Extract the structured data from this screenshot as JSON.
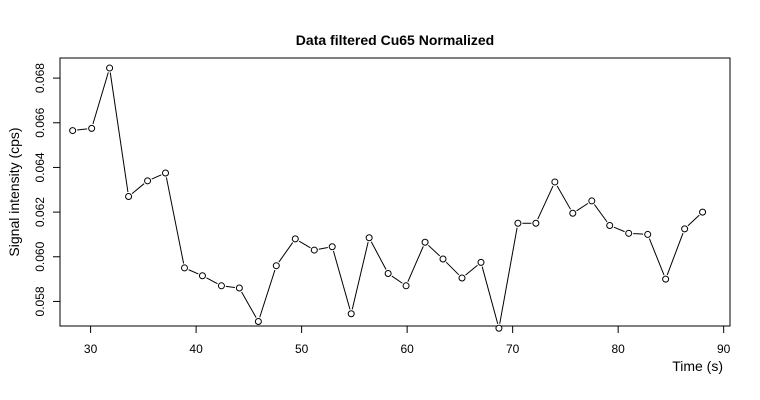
{
  "chart_data": {
    "type": "line",
    "title": "Data filtered Cu65 Normalized",
    "xlabel": "Time (s)",
    "ylabel": "Signal intensity (cps)",
    "xlim": [
      27.1,
      90.6
    ],
    "ylim": [
      0.0569,
      0.0689
    ],
    "x_ticks": [
      "30",
      "40",
      "50",
      "60",
      "70",
      "80",
      "90"
    ],
    "y_ticks": [
      "0.058",
      "0.060",
      "0.062",
      "0.064",
      "0.066",
      "0.068"
    ],
    "grid": false,
    "legend": "none",
    "series": [
      {
        "x": [
          28.3,
          30.1,
          31.8,
          33.6,
          35.4,
          37.1,
          38.9,
          40.6,
          42.4,
          44.1,
          45.9,
          47.6,
          49.4,
          51.2,
          52.9,
          54.7,
          56.4,
          58.2,
          59.9,
          61.7,
          63.4,
          65.2,
          67.0,
          68.7,
          70.5,
          72.2,
          74.0,
          75.7,
          77.5,
          79.2,
          81.0,
          82.8,
          84.5,
          86.3,
          88.0
        ],
        "y": [
          0.06565,
          0.06575,
          0.06845,
          0.0627,
          0.0634,
          0.06375,
          0.0595,
          0.05915,
          0.0587,
          0.0586,
          0.0571,
          0.0596,
          0.0608,
          0.0603,
          0.06045,
          0.05745,
          0.06085,
          0.05925,
          0.0587,
          0.06065,
          0.0599,
          0.05905,
          0.05975,
          0.0568,
          0.0615,
          0.0615,
          0.06335,
          0.06195,
          0.0625,
          0.0614,
          0.06105,
          0.061,
          0.059,
          0.06125,
          0.062
        ]
      }
    ]
  }
}
